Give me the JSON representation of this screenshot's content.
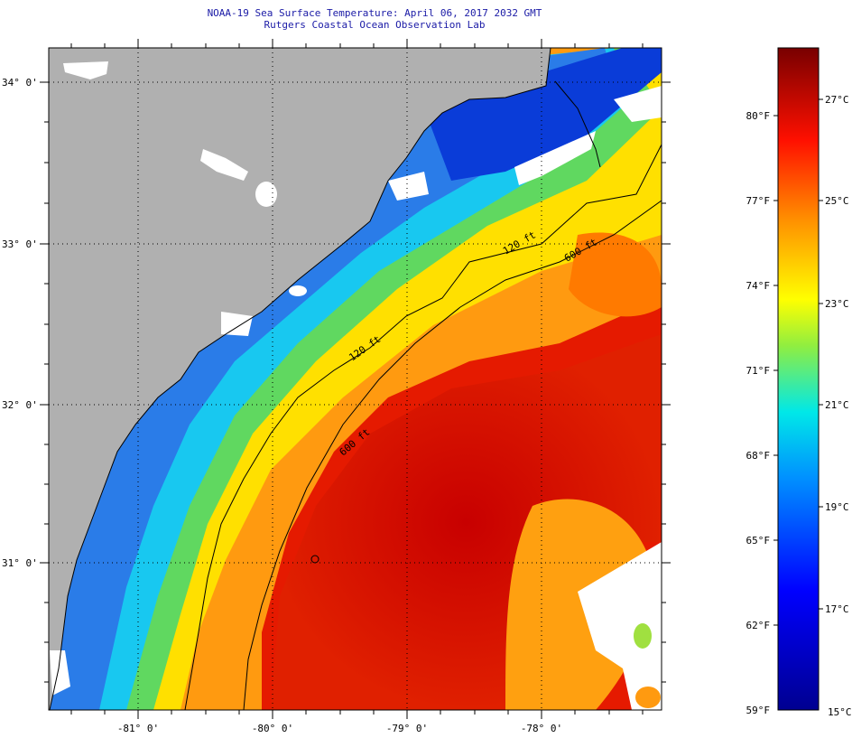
{
  "header": {
    "title": "NOAA-19 Sea Surface Temperature:  April 06, 2017 2032 GMT",
    "subtitle": "Rutgers Coastal Ocean Observation Lab"
  },
  "map": {
    "lat_labels": [
      "34° 0'",
      "33° 0'",
      "32° 0'",
      "31° 0'"
    ],
    "lon_labels": [
      "-81° 0'",
      "-80° 0'",
      "-79° 0'",
      "-78° 0'"
    ],
    "isobath_labels": [
      "120 ft",
      "600 ft",
      "600 ft",
      "120 ft"
    ],
    "colors": {
      "land": "#b0b0b0",
      "cloud": "#ffffff",
      "warm": "#d80000",
      "cool": "#1aa0e8"
    }
  },
  "colorbar": {
    "fahrenheit": [
      "80°F",
      "77°F",
      "74°F",
      "71°F",
      "68°F",
      "65°F",
      "62°F",
      "59°F"
    ],
    "celsius": [
      "27°C",
      "25°C",
      "23°C",
      "21°C",
      "19°C",
      "17°C",
      "15°C"
    ]
  }
}
